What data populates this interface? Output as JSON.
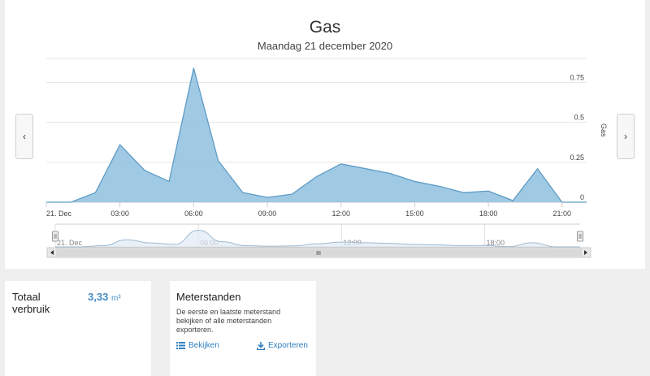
{
  "chart": {
    "title": "Gas",
    "subtitle": "Maandag 21 december 2020",
    "prev_label": "‹",
    "next_label": "›",
    "scrollbar_grip": "III"
  },
  "navigator": {
    "labels": [
      "21. Dec",
      "06:00",
      "12:00",
      "18:00"
    ]
  },
  "chart_data": {
    "type": "area",
    "title": "Gas",
    "subtitle": "Maandag 21 december 2020",
    "xlabel": "",
    "ylabel": "Gas",
    "x": [
      "00:00",
      "01:00",
      "02:00",
      "03:00",
      "04:00",
      "05:00",
      "06:00",
      "07:00",
      "08:00",
      "09:00",
      "10:00",
      "11:00",
      "12:00",
      "13:00",
      "14:00",
      "15:00",
      "16:00",
      "17:00",
      "18:00",
      "19:00",
      "20:00",
      "21:00",
      "22:00"
    ],
    "values": [
      0,
      0,
      0.06,
      0.36,
      0.2,
      0.13,
      0.84,
      0.26,
      0.06,
      0.03,
      0.05,
      0.16,
      0.24,
      0.21,
      0.18,
      0.13,
      0.1,
      0.06,
      0.07,
      0.01,
      0.21,
      0,
      0
    ],
    "x_tick_labels": [
      "21. Dec",
      "03:00",
      "06:00",
      "09:00",
      "12:00",
      "15:00",
      "18:00",
      "21:00"
    ],
    "y_tick_labels": [
      "0",
      "0.25",
      "0.5",
      "0.75"
    ],
    "ylim": [
      0,
      0.9
    ],
    "grid": true,
    "colors": {
      "fill": "#8fbfde",
      "line": "#5e9cc6"
    }
  },
  "summary": {
    "label": "Totaal verbruik",
    "value": "3,33",
    "unit": "m³"
  },
  "meter": {
    "title": "Meterstanden",
    "description": "De eerste en laatste meterstand bekijken of alle meterstanden exporteren.",
    "view_label": "Bekijken",
    "export_label": "Exporteren"
  }
}
